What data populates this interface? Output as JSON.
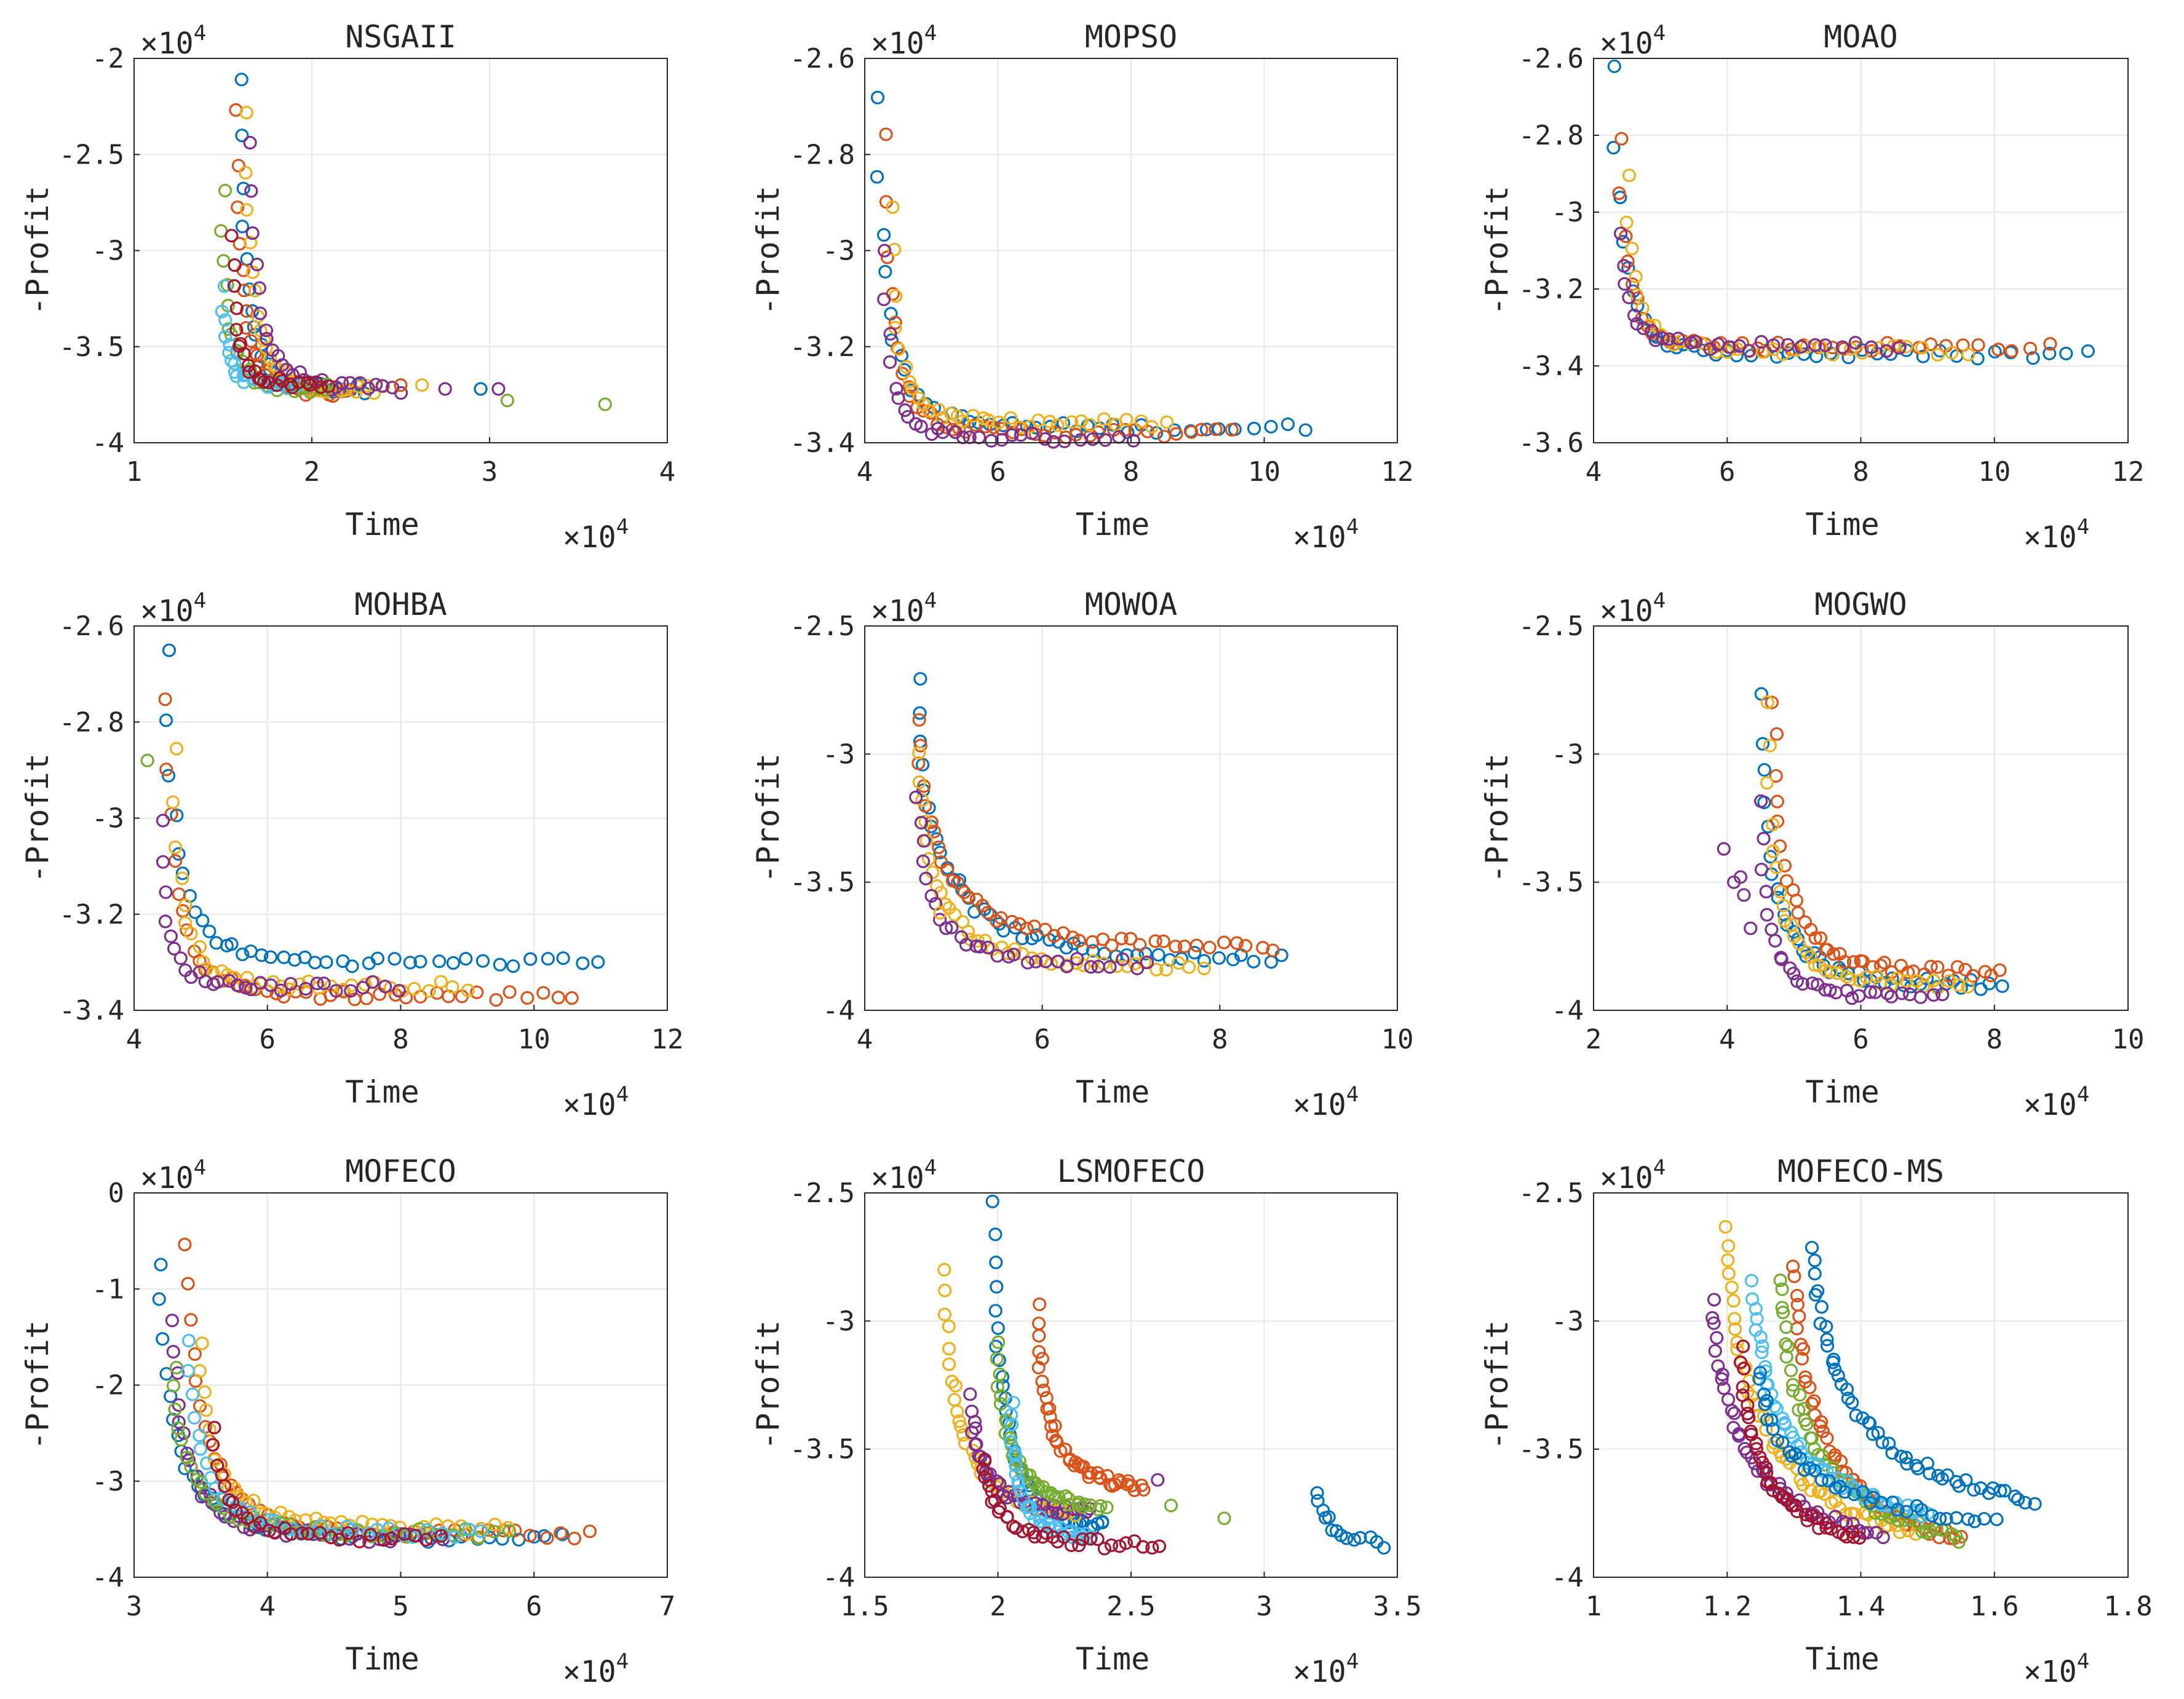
{
  "chart_data": [
    {
      "type": "scatter",
      "title": "NSGAII",
      "xlabel": "Time",
      "ylabel": "-Profit",
      "x_multiplier": "×10^4",
      "y_multiplier": "×10^4",
      "xlim": [
        1,
        4
      ],
      "ylim": [
        -4,
        -2
      ],
      "xticks": [
        1,
        2,
        3,
        4
      ],
      "yticks": [
        -4,
        -3.5,
        -3,
        -2.5,
        -2
      ],
      "xtick_labels": [
        "1",
        "2",
        "3",
        "4"
      ],
      "ytick_labels": [
        "-4",
        "-3.5",
        "-3",
        "-2.5",
        "-2"
      ],
      "grid": true,
      "fronts": [
        {
          "x0": 1.6,
          "y0": -2.1,
          "x1": 2.3,
          "y1": -3.72,
          "knee": 0.28,
          "n": 30
        },
        {
          "x0": 1.58,
          "y0": -2.25,
          "x1": 2.2,
          "y1": -3.75,
          "knee": 0.3,
          "n": 30
        },
        {
          "x0": 1.63,
          "y0": -2.3,
          "x1": 2.4,
          "y1": -3.73,
          "knee": 0.3,
          "n": 30
        },
        {
          "x0": 1.66,
          "y0": -2.45,
          "x1": 2.5,
          "y1": -3.72,
          "knee": 0.3,
          "n": 28
        },
        {
          "x0": 1.5,
          "y0": -2.7,
          "x1": 2.1,
          "y1": -3.72,
          "knee": 0.3,
          "n": 28
        },
        {
          "x0": 1.5,
          "y0": -3.2,
          "x1": 1.9,
          "y1": -3.7,
          "knee": 0.35,
          "n": 24
        },
        {
          "x0": 1.55,
          "y0": -2.9,
          "x1": 2.1,
          "y1": -3.7,
          "knee": 0.3,
          "n": 26
        }
      ],
      "extra_points": [
        {
          "x": 2.62,
          "y": -3.7,
          "c": 2
        },
        {
          "x": 2.95,
          "y": -3.72,
          "c": 0
        },
        {
          "x": 3.05,
          "y": -3.72,
          "c": 3
        },
        {
          "x": 3.1,
          "y": -3.78,
          "c": 4
        },
        {
          "x": 3.65,
          "y": -3.8,
          "c": 4
        },
        {
          "x": 2.75,
          "y": -3.72,
          "c": 3
        },
        {
          "x": 2.5,
          "y": -3.7,
          "c": 1
        }
      ]
    },
    {
      "type": "scatter",
      "title": "MOPSO",
      "xlabel": "Time",
      "ylabel": "-Profit",
      "x_multiplier": "×10^4",
      "y_multiplier": "×10^4",
      "xlim": [
        4,
        12
      ],
      "ylim": [
        -3.4,
        -2.6
      ],
      "xticks": [
        4,
        6,
        8,
        10,
        12
      ],
      "yticks": [
        -3.4,
        -3.2,
        -3,
        -2.8,
        -2.6
      ],
      "xtick_labels": [
        "4",
        "6",
        "8",
        "10",
        "12"
      ],
      "ytick_labels": [
        "-3.4",
        "-3.2",
        "-3",
        "-2.8",
        "-2.6"
      ],
      "grid": true,
      "fronts": [
        {
          "x0": 4.2,
          "y0": -2.68,
          "x1": 10.6,
          "y1": -3.37,
          "knee": 0.18,
          "n": 40
        },
        {
          "x0": 4.3,
          "y0": -2.75,
          "x1": 9.5,
          "y1": -3.38,
          "knee": 0.18,
          "n": 40
        },
        {
          "x0": 4.4,
          "y0": -2.9,
          "x1": 8.5,
          "y1": -3.36,
          "knee": 0.2,
          "n": 35
        },
        {
          "x0": 4.3,
          "y0": -3.0,
          "x1": 8.0,
          "y1": -3.39,
          "knee": 0.2,
          "n": 30
        }
      ],
      "extra_points": []
    },
    {
      "type": "scatter",
      "title": "MOAO",
      "xlabel": "Time",
      "ylabel": "-Profit",
      "x_multiplier": "×10^4",
      "y_multiplier": "×10^4",
      "xlim": [
        4,
        12
      ],
      "ylim": [
        -3.6,
        -2.6
      ],
      "xticks": [
        4,
        6,
        8,
        10,
        12
      ],
      "yticks": [
        -3.6,
        -3.4,
        -3.2,
        -3,
        -2.8,
        -2.6
      ],
      "xtick_labels": [
        "4",
        "6",
        "8",
        "10",
        "12"
      ],
      "ytick_labels": [
        "-3.6",
        "-3.4",
        "-3.2",
        "-3",
        "-2.8",
        "-2.6"
      ],
      "grid": true,
      "fronts": [
        {
          "x0": 4.3,
          "y0": -2.62,
          "x1": 11.4,
          "y1": -3.37,
          "knee": 0.15,
          "n": 40
        },
        {
          "x0": 4.4,
          "y0": -2.8,
          "x1": 10.8,
          "y1": -3.35,
          "knee": 0.15,
          "n": 40
        },
        {
          "x0": 4.5,
          "y0": -2.9,
          "x1": 9.6,
          "y1": -3.36,
          "knee": 0.18,
          "n": 35
        },
        {
          "x0": 4.4,
          "y0": -3.05,
          "x1": 8.6,
          "y1": -3.35,
          "knee": 0.2,
          "n": 30
        }
      ],
      "extra_points": []
    },
    {
      "type": "scatter",
      "title": "MOHBA",
      "xlabel": "Time",
      "ylabel": "-Profit",
      "x_multiplier": "×10^4",
      "y_multiplier": "×10^4",
      "xlim": [
        4,
        12
      ],
      "ylim": [
        -3.4,
        -2.6
      ],
      "xticks": [
        4,
        6,
        8,
        10,
        12
      ],
      "yticks": [
        -3.4,
        -3.2,
        -3,
        -2.8,
        -2.6
      ],
      "xtick_labels": [
        "4",
        "6",
        "8",
        "10",
        "12"
      ],
      "ytick_labels": [
        "-3.4",
        "-3.2",
        "-3",
        "-2.8",
        "-2.6"
      ],
      "grid": true,
      "fronts": [
        {
          "x0": 4.5,
          "y0": -2.65,
          "x1": 11.0,
          "y1": -3.3,
          "knee": 0.18,
          "n": 40
        },
        {
          "x0": 4.5,
          "y0": -2.75,
          "x1": 10.6,
          "y1": -3.37,
          "knee": 0.18,
          "n": 40
        },
        {
          "x0": 4.6,
          "y0": -2.85,
          "x1": 9.0,
          "y1": -3.35,
          "knee": 0.2,
          "n": 35
        },
        {
          "x0": 4.4,
          "y0": -3.0,
          "x1": 8.0,
          "y1": -3.35,
          "knee": 0.2,
          "n": 30
        }
      ],
      "extra_points": [
        {
          "x": 4.2,
          "y": -2.88,
          "c": 4
        }
      ]
    },
    {
      "type": "scatter",
      "title": "MOWOA",
      "xlabel": "Time",
      "ylabel": "-Profit",
      "x_multiplier": "×10^4",
      "y_multiplier": "×10^4",
      "xlim": [
        4,
        10
      ],
      "ylim": [
        -4,
        -2.5
      ],
      "xticks": [
        4,
        6,
        8,
        10
      ],
      "yticks": [
        -4,
        -3.5,
        -3,
        -2.5
      ],
      "xtick_labels": [
        "4",
        "6",
        "8",
        "10"
      ],
      "ytick_labels": [
        "-4",
        "-3.5",
        "-3",
        "-2.5"
      ],
      "grid": true,
      "fronts": [
        {
          "x0": 4.6,
          "y0": -2.72,
          "x1": 8.7,
          "y1": -3.8,
          "knee": 0.35,
          "n": 45
        },
        {
          "x0": 4.6,
          "y0": -2.85,
          "x1": 8.6,
          "y1": -3.75,
          "knee": 0.35,
          "n": 45
        },
        {
          "x0": 4.6,
          "y0": -3.0,
          "x1": 7.8,
          "y1": -3.83,
          "knee": 0.35,
          "n": 40
        },
        {
          "x0": 4.6,
          "y0": -3.15,
          "x1": 7.2,
          "y1": -3.82,
          "knee": 0.35,
          "n": 30
        }
      ],
      "extra_points": [
        {
          "x": 4.85,
          "y": -3.62,
          "c": 2
        }
      ]
    },
    {
      "type": "scatter",
      "title": "MOGWO",
      "xlabel": "Time",
      "ylabel": "-Profit",
      "x_multiplier": "×10^4",
      "y_multiplier": "×10^4",
      "xlim": [
        2,
        10
      ],
      "ylim": [
        -4,
        -2.5
      ],
      "xticks": [
        2,
        4,
        6,
        8,
        10
      ],
      "yticks": [
        -4,
        -3.5,
        -3,
        -2.5
      ],
      "xtick_labels": [
        "2",
        "4",
        "6",
        "8",
        "10"
      ],
      "ytick_labels": [
        "-4",
        "-3.5",
        "-3",
        "-2.5"
      ],
      "grid": true,
      "fronts": [
        {
          "x0": 4.5,
          "y0": -2.78,
          "x1": 8.1,
          "y1": -3.9,
          "knee": 0.3,
          "n": 40
        },
        {
          "x0": 4.7,
          "y0": -2.78,
          "x1": 8.1,
          "y1": -3.85,
          "knee": 0.3,
          "n": 40
        },
        {
          "x0": 4.6,
          "y0": -2.8,
          "x1": 7.6,
          "y1": -3.9,
          "knee": 0.3,
          "n": 35
        },
        {
          "x0": 4.5,
          "y0": -3.2,
          "x1": 7.2,
          "y1": -3.95,
          "knee": 0.3,
          "n": 30
        }
      ],
      "extra_points": [
        {
          "x": 3.95,
          "y": -3.37,
          "c": 3
        },
        {
          "x": 4.1,
          "y": -3.5,
          "c": 3
        },
        {
          "x": 4.25,
          "y": -3.55,
          "c": 3
        },
        {
          "x": 4.35,
          "y": -3.68,
          "c": 3
        },
        {
          "x": 4.2,
          "y": -3.48,
          "c": 3
        }
      ]
    },
    {
      "type": "scatter",
      "title": "MOFECO",
      "xlabel": "Time",
      "ylabel": "-Profit",
      "x_multiplier": "×10^4",
      "y_multiplier": "×10^4",
      "xlim": [
        3,
        7
      ],
      "ylim": [
        -4,
        0
      ],
      "xticks": [
        3,
        4,
        5,
        6,
        7
      ],
      "yticks": [
        -4,
        -3,
        -2,
        -1,
        0
      ],
      "xtick_labels": [
        "3",
        "4",
        "5",
        "6",
        "7"
      ],
      "ytick_labels": [
        "-4",
        "-3",
        "-2",
        "-1",
        "0"
      ],
      "grid": true,
      "fronts": [
        {
          "x0": 3.2,
          "y0": -0.7,
          "x1": 6.2,
          "y1": -3.6,
          "knee": 0.25,
          "n": 45
        },
        {
          "x0": 3.4,
          "y0": -0.5,
          "x1": 6.4,
          "y1": -3.55,
          "knee": 0.25,
          "n": 45
        },
        {
          "x0": 3.5,
          "y0": -1.6,
          "x1": 5.8,
          "y1": -3.5,
          "knee": 0.3,
          "n": 40
        },
        {
          "x0": 3.3,
          "y0": -1.3,
          "x1": 5.3,
          "y1": -3.6,
          "knee": 0.3,
          "n": 40
        },
        {
          "x0": 3.3,
          "y0": -1.8,
          "x1": 5.8,
          "y1": -3.55,
          "knee": 0.3,
          "n": 40
        },
        {
          "x0": 3.4,
          "y0": -1.5,
          "x1": 5.6,
          "y1": -3.55,
          "knee": 0.3,
          "n": 35
        },
        {
          "x0": 3.6,
          "y0": -2.4,
          "x1": 5.3,
          "y1": -3.6,
          "knee": 0.3,
          "n": 30
        }
      ],
      "extra_points": []
    },
    {
      "type": "scatter",
      "title": "LSMOFECO",
      "xlabel": "Time",
      "ylabel": "-Profit",
      "x_multiplier": "×10^4",
      "y_multiplier": "×10^4",
      "xlim": [
        1.5,
        3.5
      ],
      "ylim": [
        -4,
        -2.5
      ],
      "xticks": [
        1.5,
        2,
        2.5,
        3,
        3.5
      ],
      "yticks": [
        -4,
        -3.5,
        -3,
        -2.5
      ],
      "xtick_labels": [
        "1.5",
        "2",
        "2.5",
        "3",
        "3.5"
      ],
      "ytick_labels": [
        "-4",
        "-3.5",
        "-3",
        "-2.5"
      ],
      "grid": true,
      "fronts": [
        {
          "x0": 1.98,
          "y0": -2.55,
          "x1": 2.4,
          "y1": -3.8,
          "knee": 0.45,
          "n": 45
        },
        {
          "x0": 2.15,
          "y0": -2.95,
          "x1": 2.55,
          "y1": -3.65,
          "knee": 0.5,
          "n": 45
        },
        {
          "x0": 1.8,
          "y0": -2.8,
          "x1": 2.3,
          "y1": -3.75,
          "knee": 0.5,
          "n": 40
        },
        {
          "x0": 1.9,
          "y0": -3.3,
          "x1": 2.35,
          "y1": -3.75,
          "knee": 0.5,
          "n": 40
        },
        {
          "x0": 2.0,
          "y0": -3.1,
          "x1": 2.4,
          "y1": -3.72,
          "knee": 0.5,
          "n": 40
        },
        {
          "x0": 2.05,
          "y0": -3.3,
          "x1": 2.35,
          "y1": -3.85,
          "knee": 0.5,
          "n": 35
        },
        {
          "x0": 1.95,
          "y0": -3.55,
          "x1": 2.6,
          "y1": -3.88,
          "knee": 0.5,
          "n": 35
        },
        {
          "x0": 3.2,
          "y0": -3.68,
          "x1": 3.45,
          "y1": -3.87,
          "knee": 0.9,
          "n": 14
        }
      ],
      "extra_points": [
        {
          "x": 2.85,
          "y": -3.77,
          "c": 4
        },
        {
          "x": 2.65,
          "y": -3.72,
          "c": 4
        },
        {
          "x": 2.6,
          "y": -3.62,
          "c": 3
        }
      ]
    },
    {
      "type": "scatter",
      "title": "MOFECO-MS",
      "xlabel": "Time",
      "ylabel": "-Profit",
      "x_multiplier": "×10^4",
      "y_multiplier": "×10^4",
      "xlim": [
        1,
        1.8
      ],
      "ylim": [
        -4,
        -2.5
      ],
      "xticks": [
        1,
        1.2,
        1.4,
        1.6,
        1.8
      ],
      "yticks": [
        -4,
        -3.5,
        -3,
        -2.5
      ],
      "xtick_labels": [
        "1",
        "1.2",
        "1.4",
        "1.6",
        "1.8"
      ],
      "ytick_labels": [
        "-4",
        "-3.5",
        "-3",
        "-2.5"
      ],
      "grid": true,
      "fronts": [
        {
          "x0": 1.33,
          "y0": -2.72,
          "x1": 1.66,
          "y1": -3.7,
          "knee": 0.75,
          "n": 50
        },
        {
          "x0": 1.3,
          "y0": -2.78,
          "x1": 1.55,
          "y1": -3.85,
          "knee": 0.75,
          "n": 50
        },
        {
          "x0": 1.2,
          "y0": -2.65,
          "x1": 1.48,
          "y1": -3.83,
          "knee": 0.75,
          "n": 50
        },
        {
          "x0": 1.18,
          "y0": -2.92,
          "x1": 1.43,
          "y1": -3.83,
          "knee": 0.75,
          "n": 45
        },
        {
          "x0": 1.28,
          "y0": -2.83,
          "x1": 1.55,
          "y1": -3.85,
          "knee": 0.75,
          "n": 50
        },
        {
          "x0": 1.24,
          "y0": -2.85,
          "x1": 1.5,
          "y1": -3.75,
          "knee": 0.75,
          "n": 50
        },
        {
          "x0": 1.22,
          "y0": -3.1,
          "x1": 1.4,
          "y1": -3.85,
          "knee": 0.75,
          "n": 40
        },
        {
          "x0": 1.25,
          "y0": -3.2,
          "x1": 1.6,
          "y1": -3.78,
          "knee": 0.75,
          "n": 40
        }
      ],
      "extra_points": []
    }
  ],
  "colors": [
    "#0072BD",
    "#D95319",
    "#EDB120",
    "#7E2F8E",
    "#77AC30",
    "#4DBEEE",
    "#A2142F"
  ]
}
